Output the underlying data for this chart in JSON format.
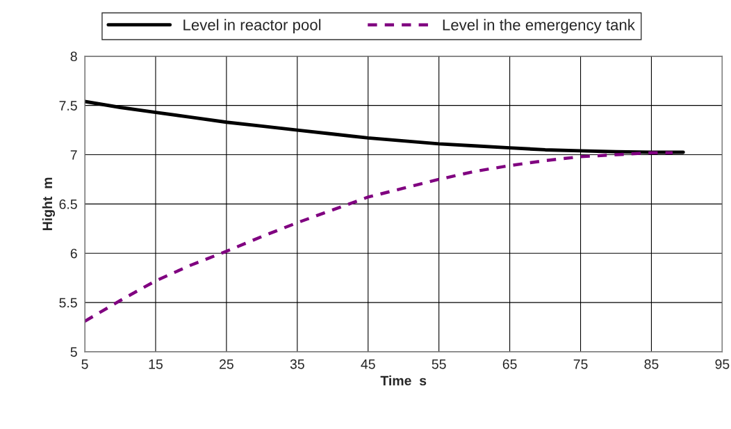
{
  "chart_data": {
    "type": "line",
    "xlabel": "Time  s",
    "ylabel": "Hight  m",
    "x": [
      5,
      10,
      15,
      20,
      25,
      30,
      35,
      40,
      45,
      50,
      55,
      60,
      65,
      70,
      75,
      80,
      85,
      89.5
    ],
    "series": [
      {
        "name": "Level in reactor pool",
        "color": "#000000",
        "line_style": "solid",
        "values": [
          7.54,
          7.48,
          7.43,
          7.38,
          7.33,
          7.29,
          7.25,
          7.21,
          7.17,
          7.14,
          7.11,
          7.09,
          7.07,
          7.05,
          7.04,
          7.03,
          7.025,
          7.025
        ]
      },
      {
        "name": "Level in the emergency tank",
        "color": "#800080",
        "line_style": "dashed",
        "x": [
          5,
          10,
          15,
          20,
          25,
          30,
          35,
          40,
          45,
          50,
          55,
          60,
          65,
          70,
          75,
          80,
          85,
          88
        ],
        "values": [
          5.31,
          5.52,
          5.72,
          5.88,
          6.02,
          6.17,
          6.31,
          6.44,
          6.57,
          6.66,
          6.75,
          6.83,
          6.89,
          6.94,
          6.98,
          7.0,
          7.02,
          7.02
        ]
      }
    ],
    "xlim": [
      5,
      95
    ],
    "xticks": [
      5,
      15,
      25,
      35,
      45,
      55,
      65,
      75,
      85,
      95
    ],
    "ylim": [
      5,
      8
    ],
    "yticks": [
      5,
      5.5,
      6,
      6.5,
      7,
      7.5,
      8
    ],
    "grid": true,
    "legend": "top",
    "marker": "none"
  }
}
